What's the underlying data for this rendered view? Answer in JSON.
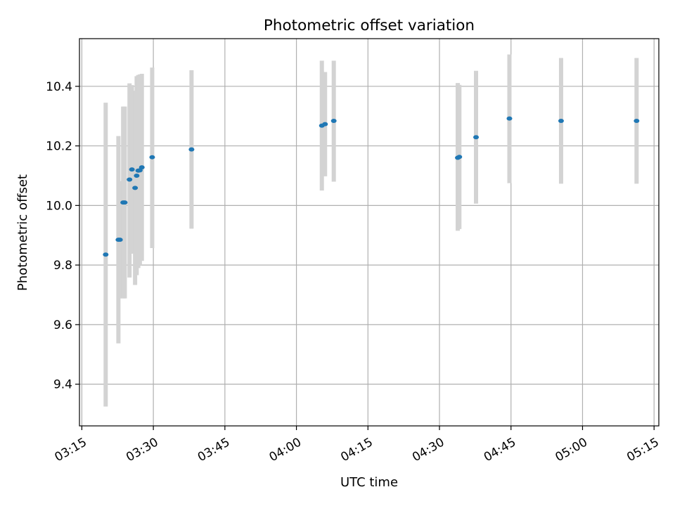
{
  "chart_data": {
    "type": "scatter",
    "title": "Photometric offset variation",
    "xlabel": "UTC time",
    "ylabel": "Photometric offset",
    "x_ticks": [
      "03:15",
      "03:30",
      "03:45",
      "04:00",
      "04:15",
      "04:30",
      "04:45",
      "05:00",
      "05:15"
    ],
    "x_tick_minutes": [
      195,
      210,
      225,
      240,
      255,
      270,
      285,
      300,
      315
    ],
    "y_ticks": [
      "9.4",
      "9.6",
      "9.8",
      "10.0",
      "10.2",
      "10.4"
    ],
    "y_tick_values": [
      9.4,
      9.6,
      9.8,
      10.0,
      10.2,
      10.4
    ],
    "xlim": [
      "03:14:30",
      "05:16:00"
    ],
    "ylim": [
      9.26,
      10.56
    ],
    "grid": true,
    "colors": {
      "marker": "#1f77b4",
      "errorbar": "#d3d3d3",
      "grid": "#b0b0b0",
      "axes": "#000000"
    },
    "series": [
      {
        "points": [
          {
            "time": "03:20:00",
            "y": 9.835,
            "lo": 9.325,
            "hi": 10.345
          },
          {
            "time": "03:22:40",
            "y": 9.885,
            "lo": 9.537,
            "hi": 10.233
          },
          {
            "time": "03:23:00",
            "y": 9.885,
            "lo": 9.688,
            "hi": 10.082
          },
          {
            "time": "03:23:40",
            "y": 10.01,
            "lo": 9.688,
            "hi": 10.332
          },
          {
            "time": "03:24:00",
            "y": 10.01,
            "lo": 9.688,
            "hi": 10.332
          },
          {
            "time": "03:25:00",
            "y": 10.087,
            "lo": 9.758,
            "hi": 10.41
          },
          {
            "time": "03:25:30",
            "y": 10.121,
            "lo": 9.838,
            "hi": 10.404
          },
          {
            "time": "03:26:10",
            "y": 10.059,
            "lo": 9.733,
            "hi": 10.385
          },
          {
            "time": "03:26:30",
            "y": 10.1,
            "lo": 9.766,
            "hi": 10.434
          },
          {
            "time": "03:26:50",
            "y": 10.117,
            "lo": 9.79,
            "hi": 10.438
          },
          {
            "time": "03:27:10",
            "y": 10.118,
            "lo": 9.8,
            "hi": 10.44
          },
          {
            "time": "03:27:35",
            "y": 10.128,
            "lo": 9.814,
            "hi": 10.442
          },
          {
            "time": "03:29:45",
            "y": 10.162,
            "lo": 9.857,
            "hi": 10.463
          },
          {
            "time": "03:38:00",
            "y": 10.188,
            "lo": 9.922,
            "hi": 10.454
          },
          {
            "time": "04:05:20",
            "y": 10.268,
            "lo": 10.05,
            "hi": 10.486
          },
          {
            "time": "04:06:00",
            "y": 10.273,
            "lo": 10.098,
            "hi": 10.448
          },
          {
            "time": "04:07:50",
            "y": 10.284,
            "lo": 10.08,
            "hi": 10.486
          },
          {
            "time": "04:33:50",
            "y": 10.16,
            "lo": 9.915,
            "hi": 10.411
          },
          {
            "time": "04:34:10",
            "y": 10.163,
            "lo": 9.921,
            "hi": 10.405
          },
          {
            "time": "04:37:40",
            "y": 10.229,
            "lo": 10.006,
            "hi": 10.452
          },
          {
            "time": "04:44:40",
            "y": 10.292,
            "lo": 10.075,
            "hi": 10.507
          },
          {
            "time": "04:55:30",
            "y": 10.284,
            "lo": 10.073,
            "hi": 10.495
          },
          {
            "time": "05:11:20",
            "y": 10.284,
            "lo": 10.073,
            "hi": 10.495
          }
        ]
      }
    ]
  }
}
